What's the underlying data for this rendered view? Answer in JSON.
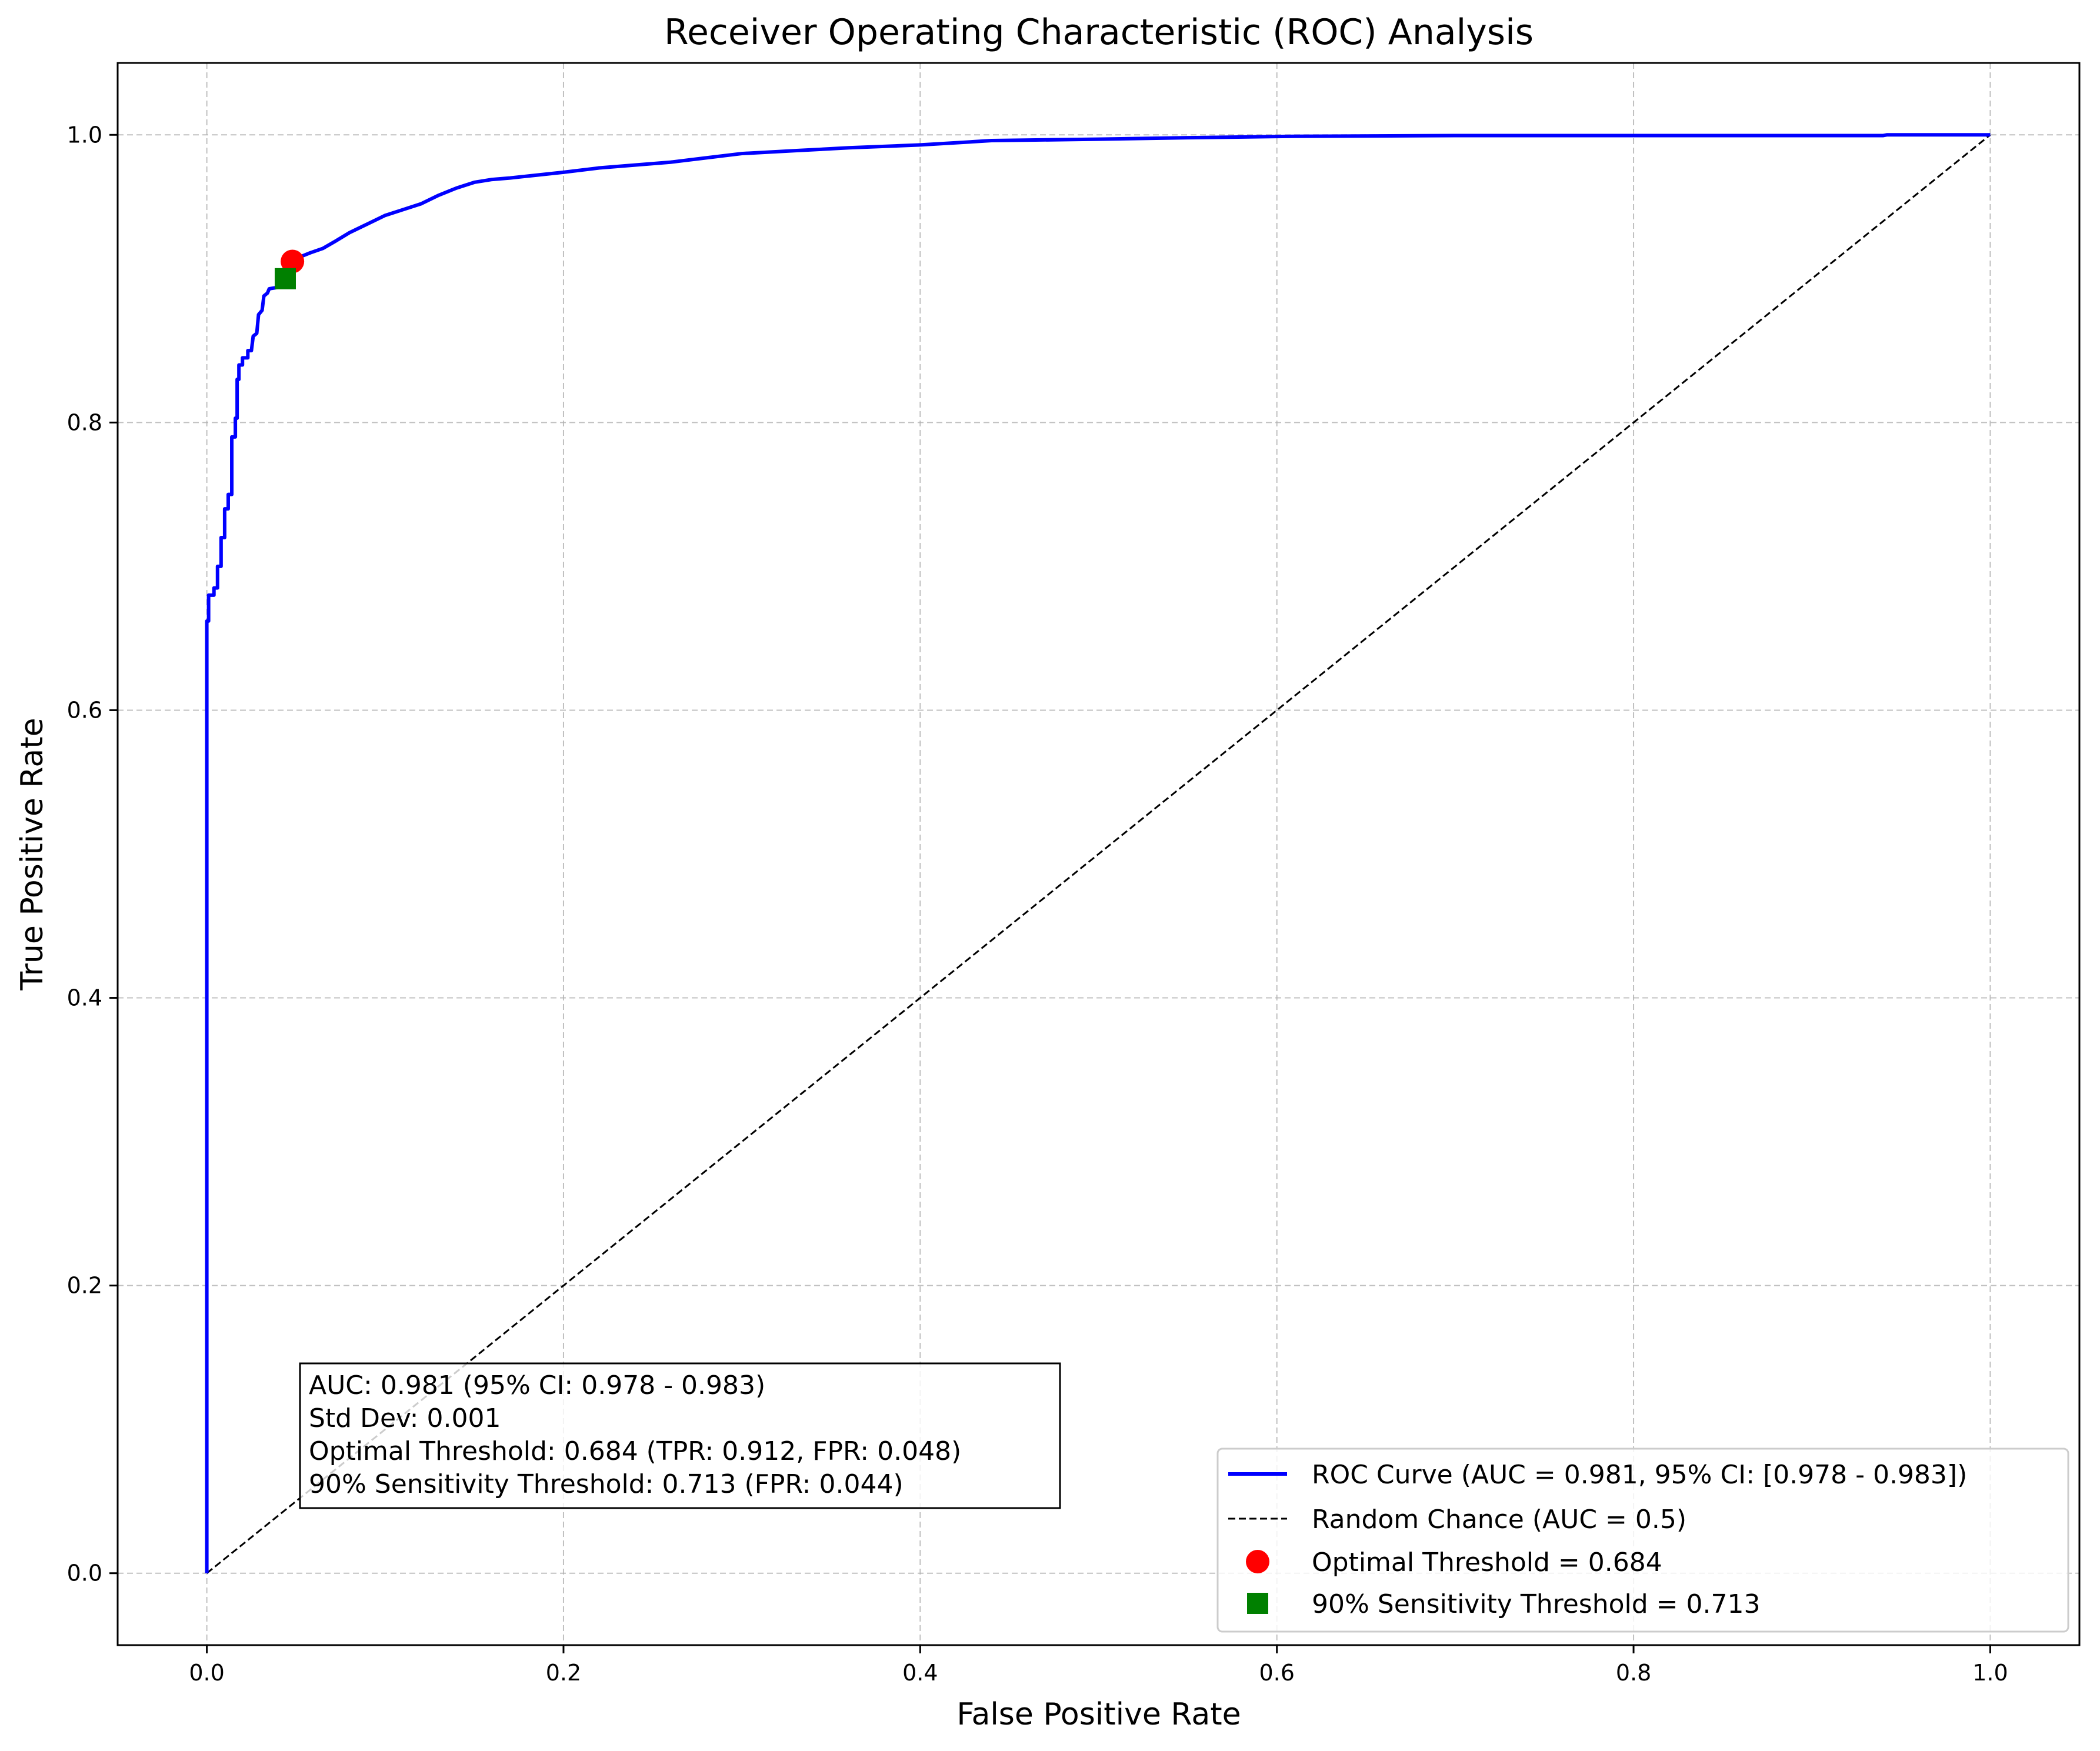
{
  "chart_data": {
    "type": "line",
    "title": "Receiver Operating Characteristic (ROC) Analysis",
    "xlabel": "False Positive Rate",
    "ylabel": "True Positive Rate",
    "xlim": [
      -0.05,
      1.05
    ],
    "ylim": [
      -0.05,
      1.05
    ],
    "x_ticks": [
      0.0,
      0.2,
      0.4,
      0.6,
      0.8,
      1.0
    ],
    "y_ticks": [
      0.0,
      0.2,
      0.4,
      0.6,
      0.8,
      1.0
    ],
    "x_tick_labels": [
      "0.0",
      "0.2",
      "0.4",
      "0.6",
      "0.8",
      "1.0"
    ],
    "y_tick_labels": [
      "0.0",
      "0.2",
      "0.4",
      "0.6",
      "0.8",
      "1.0"
    ],
    "grid": true,
    "legend_position": "lower-right",
    "series": [
      {
        "name": "ROC Curve (AUC = 0.981, 95% CI: [0.978 - 0.983])",
        "color": "#0000ff",
        "style": "solid",
        "points": [
          [
            0.0,
            0.0
          ],
          [
            0.0,
            0.662
          ],
          [
            0.001,
            0.662
          ],
          [
            0.001,
            0.68
          ],
          [
            0.004,
            0.68
          ],
          [
            0.004,
            0.685
          ],
          [
            0.006,
            0.685
          ],
          [
            0.006,
            0.7
          ],
          [
            0.008,
            0.7
          ],
          [
            0.008,
            0.72
          ],
          [
            0.01,
            0.72
          ],
          [
            0.01,
            0.74
          ],
          [
            0.012,
            0.74
          ],
          [
            0.012,
            0.75
          ],
          [
            0.014,
            0.75
          ],
          [
            0.014,
            0.79
          ],
          [
            0.016,
            0.79
          ],
          [
            0.016,
            0.803
          ],
          [
            0.017,
            0.803
          ],
          [
            0.017,
            0.83
          ],
          [
            0.018,
            0.83
          ],
          [
            0.018,
            0.84
          ],
          [
            0.02,
            0.84
          ],
          [
            0.02,
            0.845
          ],
          [
            0.023,
            0.845
          ],
          [
            0.023,
            0.85
          ],
          [
            0.025,
            0.85
          ],
          [
            0.026,
            0.86
          ],
          [
            0.028,
            0.862
          ],
          [
            0.029,
            0.875
          ],
          [
            0.031,
            0.878
          ],
          [
            0.032,
            0.888
          ],
          [
            0.034,
            0.89
          ],
          [
            0.035,
            0.893
          ],
          [
            0.04,
            0.894
          ],
          [
            0.044,
            0.9
          ],
          [
            0.048,
            0.912
          ],
          [
            0.052,
            0.915
          ],
          [
            0.058,
            0.918
          ],
          [
            0.065,
            0.921
          ],
          [
            0.072,
            0.926
          ],
          [
            0.08,
            0.932
          ],
          [
            0.09,
            0.938
          ],
          [
            0.1,
            0.944
          ],
          [
            0.11,
            0.948
          ],
          [
            0.12,
            0.952
          ],
          [
            0.13,
            0.958
          ],
          [
            0.14,
            0.963
          ],
          [
            0.15,
            0.967
          ],
          [
            0.16,
            0.969
          ],
          [
            0.17,
            0.97
          ],
          [
            0.185,
            0.972
          ],
          [
            0.2,
            0.974
          ],
          [
            0.22,
            0.977
          ],
          [
            0.24,
            0.979
          ],
          [
            0.26,
            0.981
          ],
          [
            0.28,
            0.984
          ],
          [
            0.3,
            0.987
          ],
          [
            0.33,
            0.989
          ],
          [
            0.36,
            0.991
          ],
          [
            0.4,
            0.993
          ],
          [
            0.44,
            0.996
          ],
          [
            0.5,
            0.997
          ],
          [
            0.55,
            0.998
          ],
          [
            0.61,
            0.999
          ],
          [
            0.7,
            0.9995
          ],
          [
            0.8,
            0.9995
          ],
          [
            0.94,
            0.9995
          ],
          [
            0.942,
            1.0
          ],
          [
            1.0,
            1.0
          ]
        ]
      },
      {
        "name": "Random Chance (AUC = 0.5)",
        "color": "#000000",
        "style": "dashed",
        "points": [
          [
            0.0,
            0.0
          ],
          [
            1.0,
            1.0
          ]
        ]
      }
    ],
    "markers": [
      {
        "name": "Optimal Threshold = 0.684",
        "shape": "circle",
        "color": "#ff0000",
        "x": 0.048,
        "y": 0.912
      },
      {
        "name": "90% Sensitivity Threshold = 0.713",
        "shape": "square",
        "color": "#008000",
        "x": 0.044,
        "y": 0.9
      }
    ],
    "annotation_lines": [
      "AUC: 0.981 (95% CI: 0.978 - 0.983)",
      "Std Dev: 0.001",
      "Optimal Threshold: 0.684 (TPR: 0.912, FPR: 0.048)",
      "90% Sensitivity Threshold: 0.713 (FPR: 0.044)"
    ]
  }
}
